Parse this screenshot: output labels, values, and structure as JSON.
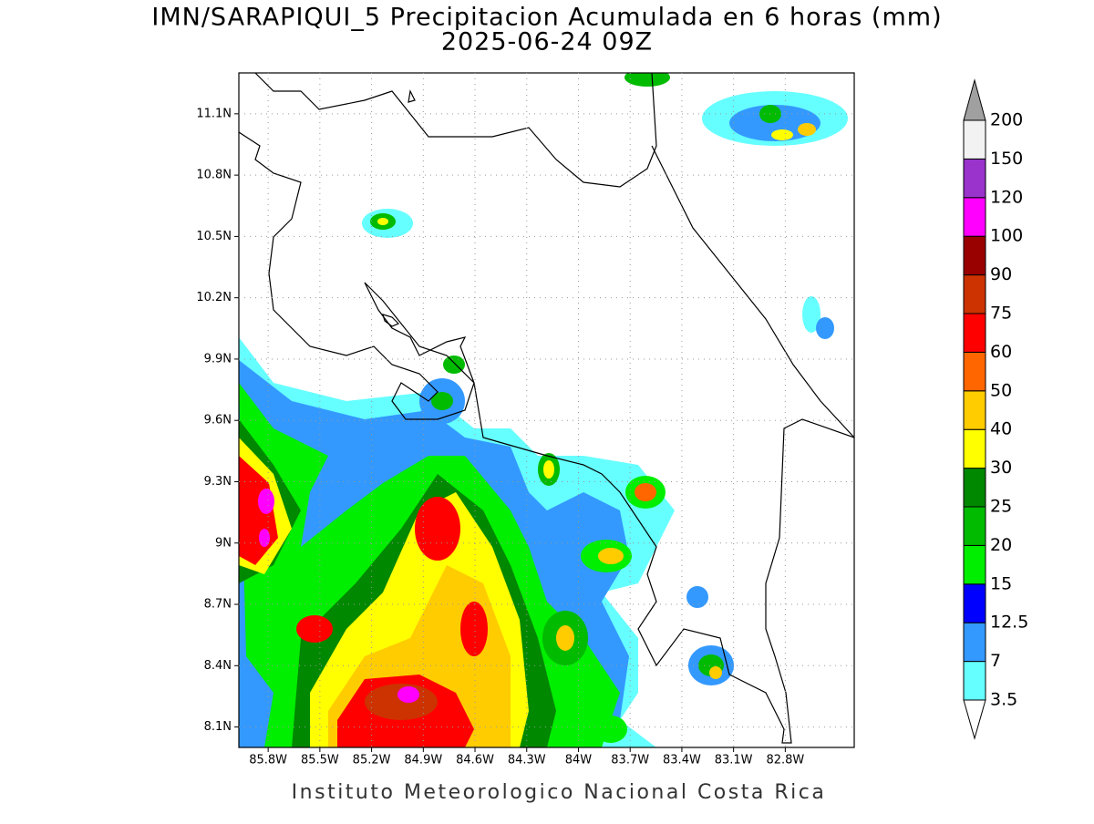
{
  "title": "IMN/SARAPIQUI_5 Precipitacion Acumulada en 6 horas (mm)",
  "subtitle": "2025-06-24 09Z",
  "map": {
    "xlim": [
      -85.97,
      -82.4
    ],
    "ylim": [
      8.0,
      11.3
    ],
    "xticks": [
      {
        "value": -85.8,
        "label": "85.8W"
      },
      {
        "value": -85.5,
        "label": "85.5W"
      },
      {
        "value": -85.2,
        "label": "85.2W"
      },
      {
        "value": -84.9,
        "label": "84.9W"
      },
      {
        "value": -84.6,
        "label": "84.6W"
      },
      {
        "value": -84.3,
        "label": "84.3W"
      },
      {
        "value": -84.0,
        "label": "84W"
      },
      {
        "value": -83.7,
        "label": "83.7W"
      },
      {
        "value": -83.4,
        "label": "83.4W"
      },
      {
        "value": -83.1,
        "label": "83.1W"
      },
      {
        "value": -82.8,
        "label": "82.8W"
      }
    ],
    "yticks": [
      {
        "value": 8.1,
        "label": "8.1N"
      },
      {
        "value": 8.4,
        "label": "8.4N"
      },
      {
        "value": 8.7,
        "label": "8.7N"
      },
      {
        "value": 9.0,
        "label": "9N"
      },
      {
        "value": 9.3,
        "label": "9.3N"
      },
      {
        "value": 9.6,
        "label": "9.6N"
      },
      {
        "value": 9.9,
        "label": "9.9N"
      },
      {
        "value": 10.2,
        "label": "10.2N"
      },
      {
        "value": 10.5,
        "label": "10.5N"
      },
      {
        "value": 10.8,
        "label": "10.8N"
      },
      {
        "value": 11.1,
        "label": "11.1N"
      }
    ],
    "grid": true
  },
  "colorbar": {
    "levels": [
      3.5,
      7,
      12.5,
      15,
      20,
      25,
      30,
      40,
      50,
      60,
      75,
      90,
      100,
      120,
      150,
      200
    ],
    "colors": [
      "#66ffff",
      "#3399ff",
      "#0000ff",
      "#00ee00",
      "#00bb00",
      "#008800",
      "#ffff00",
      "#ffcc00",
      "#ff6600",
      "#ff0000",
      "#cc3300",
      "#990000",
      "#ff00ff",
      "#9933cc",
      "#f2f2f2"
    ],
    "under_color": "#ffffff",
    "over_color": "#a0a0a0"
  },
  "footer": "Instituto Meteorologico Nacional Costa Rica"
}
